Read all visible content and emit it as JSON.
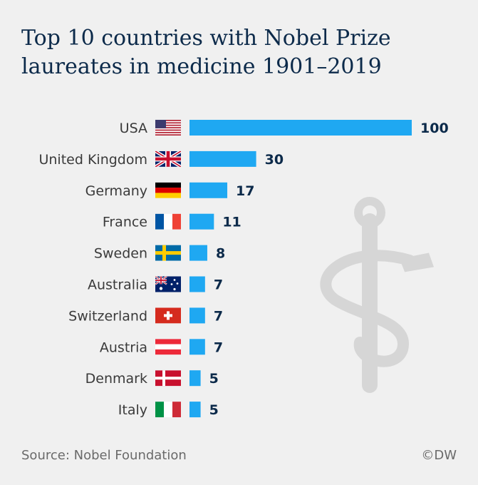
{
  "chart_data": {
    "type": "bar",
    "orientation": "horizontal",
    "title_lines": [
      "Top 10 countries with Nobel Prize",
      "laureates in medicine 1901–2019"
    ],
    "categories": [
      "USA",
      "United Kingdom",
      "Germany",
      "France",
      "Sweden",
      "Australia",
      "Switzerland",
      "Austria",
      "Denmark",
      "Italy"
    ],
    "values": [
      100,
      30,
      17,
      11,
      8,
      7,
      7,
      7,
      5,
      5
    ],
    "flags": [
      "us-flag",
      "uk-flag",
      "germany-flag",
      "france-flag",
      "sweden-flag",
      "australia-flag",
      "switzerland-flag",
      "austria-flag",
      "denmark-flag",
      "italy-flag"
    ],
    "xlim": [
      0,
      100
    ],
    "bar_color": "#1fa8f2",
    "grid": false,
    "source": "Source: Nobel Foundation",
    "credit": "©DW"
  }
}
